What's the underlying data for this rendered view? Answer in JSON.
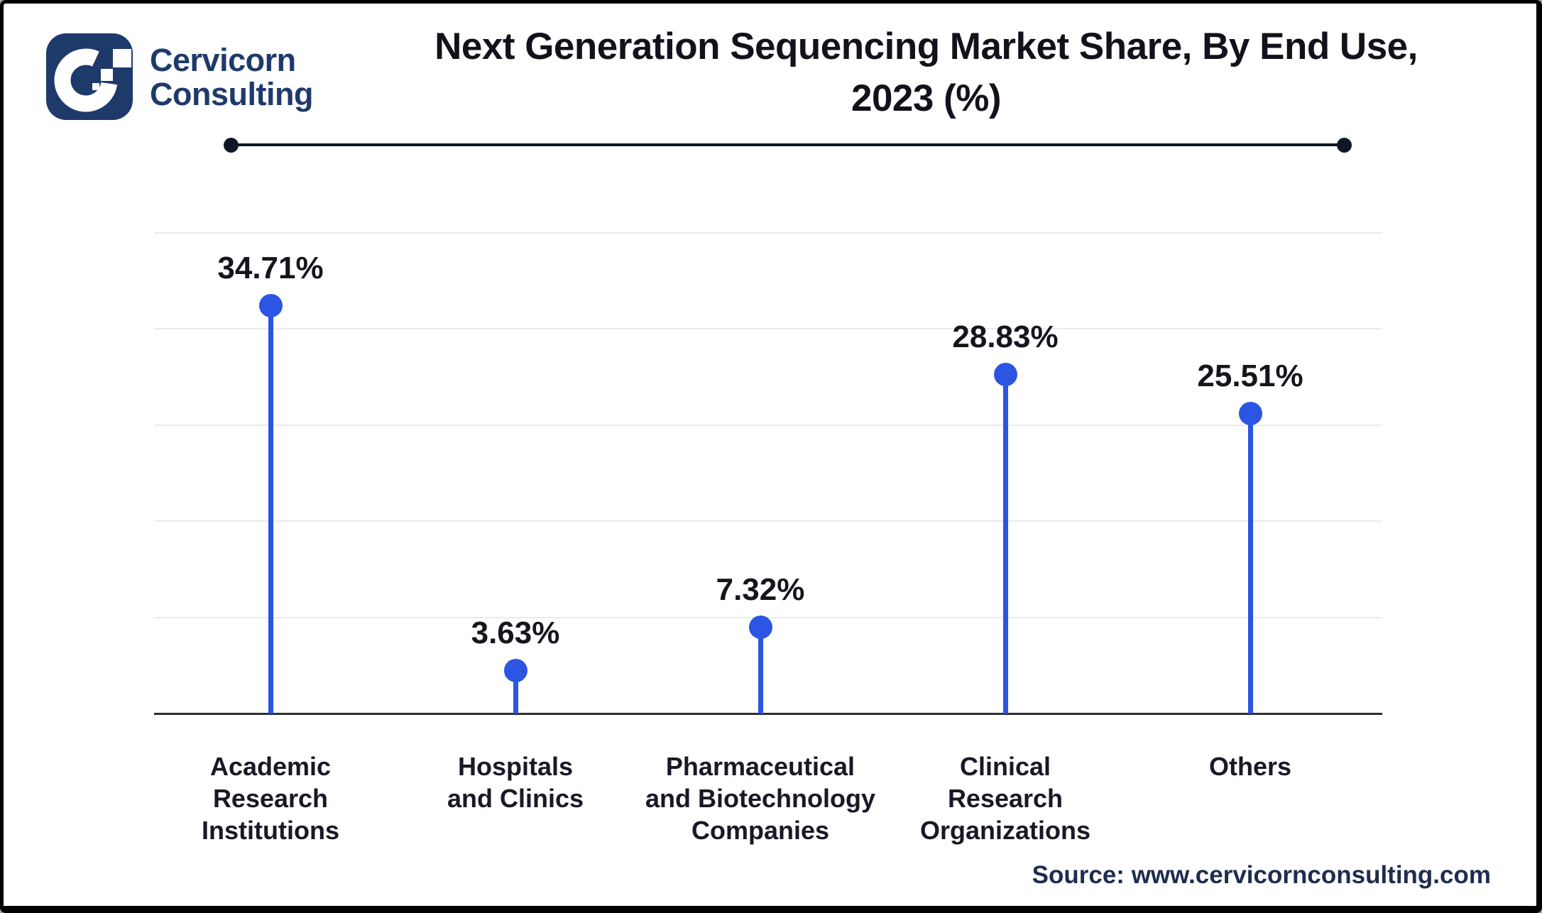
{
  "brand": {
    "line1": "Cervicorn",
    "line2": "Consulting",
    "logo_icon": "cervicorn-c-pixel-logo"
  },
  "title": {
    "line1": "Next Generation Sequencing Market Share, By End Use,",
    "line2": "2023 (%)"
  },
  "source_note": "Source: www.cervicornconsulting.com",
  "palette": {
    "accent_blue": "#2b55e2",
    "brand_navy": "#1e3a6b",
    "title_color": "#12121c",
    "value_color": "#15151e",
    "cat_color": "#181826",
    "rule_color": "#0f1626",
    "grid_color": "#eaeaef",
    "axis_color": "#2e2e36",
    "source_color": "#1f2c4f"
  },
  "chart_data": {
    "type": "bar",
    "variant": "lollipop",
    "title": "Next Generation Sequencing Market Share, By End Use, 2023 (%)",
    "categories": [
      "Academic\nResearch\nInstitutions",
      "Hospitals\nand Clinics",
      "Pharmaceutical\nand Biotechnology\nCompanies",
      "Clinical\nResearch\nOrganizations",
      "Others"
    ],
    "values": [
      34.71,
      3.63,
      7.32,
      28.83,
      25.51
    ],
    "point_labels": [
      "34.71%",
      "3.63%",
      "7.32%",
      "28.83%",
      "25.51%"
    ],
    "xlabel": "",
    "ylabel": "",
    "ylim": [
      0,
      40
    ],
    "grid": "horizontal, 5 light lines every 8%",
    "legend": "none",
    "source": "Source: www.cervicornconsulting.com"
  }
}
